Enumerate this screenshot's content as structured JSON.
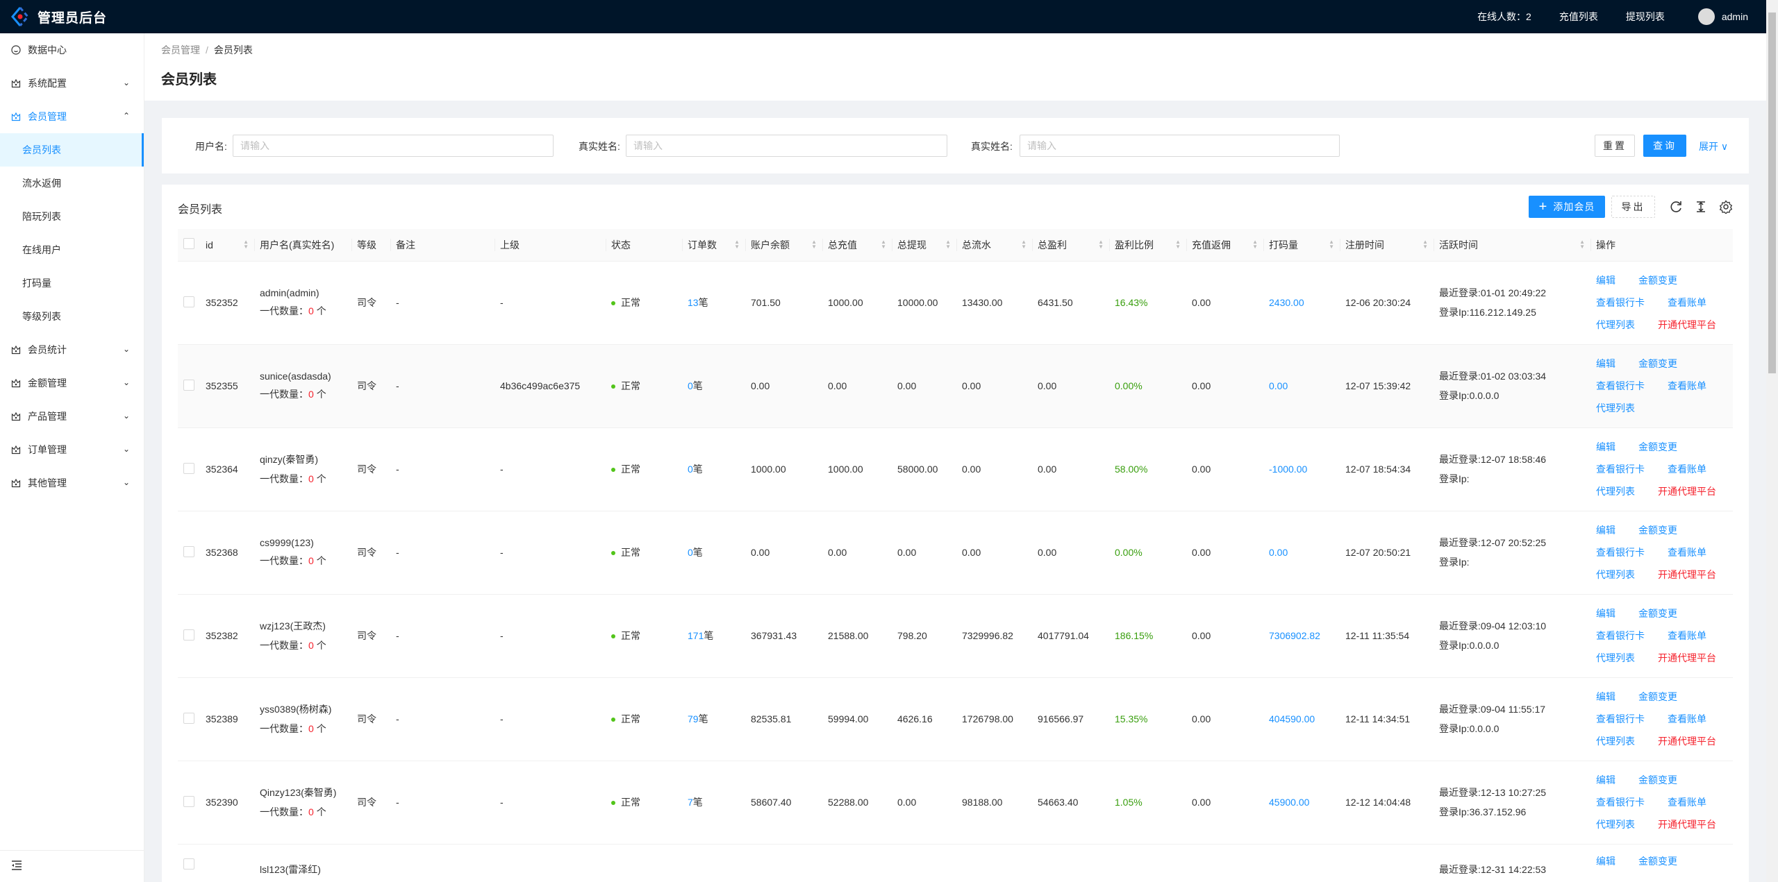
{
  "header": {
    "title": "管理员后台",
    "online_label": "在线人数：2",
    "recharge_link": "充值列表",
    "withdraw_link": "提现列表",
    "user": "admin",
    "bg_color": "#001529"
  },
  "sidebar": {
    "items": [
      {
        "label": "数据中心",
        "icon": "dashboard-icon"
      },
      {
        "label": "系统配置",
        "icon": "crown-icon",
        "chevron": "down"
      },
      {
        "label": "会员管理",
        "icon": "crown-icon",
        "chevron": "up",
        "open": true
      },
      {
        "label": "会员列表",
        "sub": true,
        "active": true
      },
      {
        "label": "流水返佣",
        "sub": true
      },
      {
        "label": "陪玩列表",
        "sub": true
      },
      {
        "label": "在线用户",
        "sub": true
      },
      {
        "label": "打码量",
        "sub": true
      },
      {
        "label": "等级列表",
        "sub": true
      },
      {
        "label": "会员统计",
        "icon": "crown-icon",
        "chevron": "down"
      },
      {
        "label": "金额管理",
        "icon": "crown-icon",
        "chevron": "down"
      },
      {
        "label": "产品管理",
        "icon": "crown-icon",
        "chevron": "down"
      },
      {
        "label": "订单管理",
        "icon": "crown-icon",
        "chevron": "down"
      },
      {
        "label": "其他管理",
        "icon": "crown-icon",
        "chevron": "down"
      }
    ]
  },
  "breadcrumb": [
    "会员管理",
    "会员列表"
  ],
  "page_title": "会员列表",
  "search": {
    "fields": [
      {
        "label": "用户名:",
        "placeholder": "请输入",
        "value": ""
      },
      {
        "label": "真实姓名:",
        "placeholder": "请输入",
        "value": ""
      },
      {
        "label": "真实姓名:",
        "placeholder": "请输入",
        "value": ""
      }
    ],
    "reset": "重置",
    "query": "查询",
    "expand": "展开"
  },
  "table_card": {
    "title": "会员列表",
    "add_button": "添加会员",
    "export_button": "导出",
    "accent": "#1890ff"
  },
  "table": {
    "columns": [
      "id",
      "用户名(真实姓名)",
      "等级",
      "备注",
      "上级",
      "状态",
      "订单数",
      "账户余额",
      "总充值",
      "总提现",
      "总流水",
      "总盈利",
      "盈利比例",
      "充值返佣",
      "打码量",
      "注册时间",
      "活跃时间",
      "操作"
    ],
    "sub_count_label": "一代数量：",
    "sub_count_unit": "个",
    "order_unit": "笔",
    "last_login_label": "最近登录:",
    "ip_label": "登录Ip:",
    "actions": {
      "edit": "编辑",
      "amount": "金额变更",
      "bank": "查看银行卡",
      "bill": "查看账单",
      "agents": "代理列表",
      "open_agent": "开通代理平台"
    },
    "rows": [
      {
        "id": "352352",
        "user": "admin(admin)",
        "sub_count": "0",
        "level": "司令",
        "note": "-",
        "parent": "-",
        "status": "正常",
        "orders": "13",
        "balance": "701.50",
        "recharge": "1000.00",
        "withdraw": "10000.00",
        "flow": "13430.00",
        "profit": "6431.50",
        "ratio": "16.43%",
        "rebate": "0.00",
        "code": "2430.00",
        "reg": "12-06 20:30:24",
        "last_login": "01-01 20:49:22",
        "ip": "116.212.149.25",
        "open_agent": true
      },
      {
        "id": "352355",
        "user": "sunice(asdasda)",
        "sub_count": "0",
        "level": "司令",
        "note": "-",
        "parent": "4b36c499ac6e375",
        "status": "正常",
        "orders": "0",
        "balance": "0.00",
        "recharge": "0.00",
        "withdraw": "0.00",
        "flow": "0.00",
        "profit": "0.00",
        "ratio": "0.00%",
        "rebate": "0.00",
        "code": "0.00",
        "reg": "12-07 15:39:42",
        "last_login": "01-02 03:03:34",
        "ip": "0.0.0.0",
        "open_agent": false
      },
      {
        "id": "352364",
        "user": "qinzy(秦智勇)",
        "sub_count": "0",
        "level": "司令",
        "note": "-",
        "parent": "-",
        "status": "正常",
        "orders": "0",
        "balance": "1000.00",
        "recharge": "1000.00",
        "withdraw": "58000.00",
        "flow": "0.00",
        "profit": "0.00",
        "ratio": "58.00%",
        "rebate": "0.00",
        "code": "-1000.00",
        "reg": "12-07 18:54:34",
        "last_login": "12-07 18:58:46",
        "ip": "",
        "open_agent": true
      },
      {
        "id": "352368",
        "user": "cs9999(123)",
        "sub_count": "0",
        "level": "司令",
        "note": "-",
        "parent": "-",
        "status": "正常",
        "orders": "0",
        "balance": "0.00",
        "recharge": "0.00",
        "withdraw": "0.00",
        "flow": "0.00",
        "profit": "0.00",
        "ratio": "0.00%",
        "rebate": "0.00",
        "code": "0.00",
        "reg": "12-07 20:50:21",
        "last_login": "12-07 20:52:25",
        "ip": "",
        "open_agent": true
      },
      {
        "id": "352382",
        "user": "wzj123(王政杰)",
        "sub_count": "0",
        "level": "司令",
        "note": "-",
        "parent": "-",
        "status": "正常",
        "orders": "171",
        "balance": "367931.43",
        "recharge": "21588.00",
        "withdraw": "798.20",
        "flow": "7329996.82",
        "profit": "4017791.04",
        "ratio": "186.15%",
        "rebate": "0.00",
        "code": "7306902.82",
        "reg": "12-11 11:35:54",
        "last_login": "09-04 12:03:10",
        "ip": "0.0.0.0",
        "open_agent": true
      },
      {
        "id": "352389",
        "user": "yss0389(杨树森)",
        "sub_count": "0",
        "level": "司令",
        "note": "-",
        "parent": "-",
        "status": "正常",
        "orders": "79",
        "balance": "82535.81",
        "recharge": "59994.00",
        "withdraw": "4626.16",
        "flow": "1726798.00",
        "profit": "916566.97",
        "ratio": "15.35%",
        "rebate": "0.00",
        "code": "404590.00",
        "reg": "12-11 14:34:51",
        "last_login": "09-04 11:55:17",
        "ip": "0.0.0.0",
        "open_agent": true
      },
      {
        "id": "352390",
        "user": "Qinzy123(秦智勇)",
        "sub_count": "0",
        "level": "司令",
        "note": "-",
        "parent": "-",
        "status": "正常",
        "orders": "7",
        "balance": "58607.40",
        "recharge": "52288.00",
        "withdraw": "0.00",
        "flow": "98188.00",
        "profit": "54663.40",
        "ratio": "1.05%",
        "rebate": "0.00",
        "code": "45900.00",
        "reg": "12-12 14:04:48",
        "last_login": "12-13 10:27:25",
        "ip": "36.37.152.96",
        "open_agent": true
      },
      {
        "id": "",
        "user": "lsl123(雷泽红)",
        "sub_count": "",
        "level": "",
        "note": "",
        "parent": "",
        "status": "",
        "orders": "",
        "balance": "",
        "recharge": "",
        "withdraw": "",
        "flow": "",
        "profit": "",
        "ratio": "",
        "rebate": "",
        "code": "",
        "reg": "",
        "last_login": "12-31 14:22:53",
        "ip": "",
        "open_agent": true,
        "partial": true
      }
    ]
  }
}
